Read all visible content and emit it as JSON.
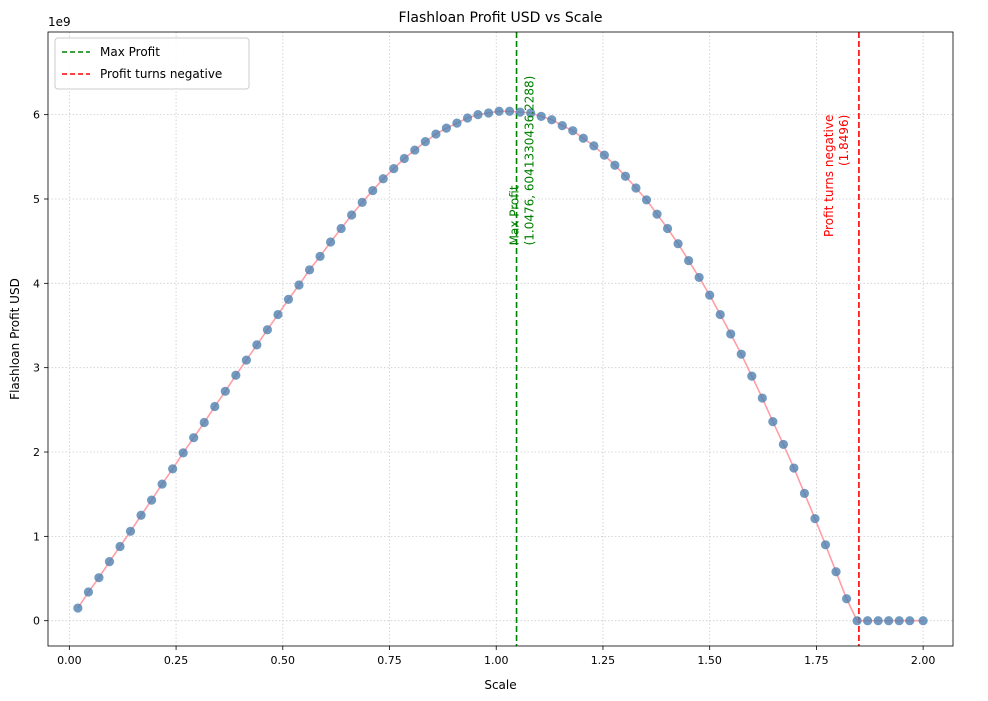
{
  "chart_data": {
    "type": "scatter",
    "title": "Flashloan Profit USD vs Scale",
    "xlabel": "Scale",
    "ylabel": "Flashloan Profit USD",
    "y_offset_label": "1e9",
    "xlim": [
      -0.05,
      2.07
    ],
    "ylim": [
      -0.3,
      6.98
    ],
    "xticks": [
      0.0,
      0.25,
      0.5,
      0.75,
      1.0,
      1.25,
      1.5,
      1.75,
      2.0
    ],
    "xtick_labels": [
      "0.00",
      "0.25",
      "0.50",
      "0.75",
      "1.00",
      "1.25",
      "1.50",
      "1.75",
      "2.00"
    ],
    "yticks": [
      0,
      1,
      2,
      3,
      4,
      5,
      6
    ],
    "ytick_labels": [
      "0",
      "1",
      "2",
      "3",
      "4",
      "5",
      "6"
    ],
    "grid": true,
    "legend_position": "top-left",
    "series": [
      {
        "x": [
          0.02,
          0.0447,
          0.0693,
          0.094,
          0.1187,
          0.1433,
          0.168,
          0.1927,
          0.2173,
          0.242,
          0.2667,
          0.2913,
          0.316,
          0.3407,
          0.3653,
          0.39,
          0.4147,
          0.4393,
          0.464,
          0.4887,
          0.5133,
          0.538,
          0.5627,
          0.5873,
          0.612,
          0.6367,
          0.6613,
          0.686,
          0.7107,
          0.7353,
          0.76,
          0.7847,
          0.8093,
          0.834,
          0.8587,
          0.8833,
          0.908,
          0.9327,
          0.9573,
          0.982,
          1.0067,
          1.0313,
          1.056,
          1.0807,
          1.1053,
          1.13,
          1.1547,
          1.1793,
          1.204,
          1.2287,
          1.2533,
          1.278,
          1.3027,
          1.3273,
          1.352,
          1.3767,
          1.4013,
          1.426,
          1.4507,
          1.4753,
          1.5,
          1.5247,
          1.5493,
          1.574,
          1.5987,
          1.6233,
          1.648,
          1.6727,
          1.6973,
          1.722,
          1.7467,
          1.7713,
          1.796,
          1.8207,
          1.8453,
          1.87,
          1.8947,
          1.9193,
          1.944,
          1.9687,
          2.0
        ],
        "values": [
          0.15,
          0.34,
          0.51,
          0.7,
          0.88,
          1.06,
          1.25,
          1.43,
          1.62,
          1.8,
          1.99,
          2.17,
          2.35,
          2.54,
          2.72,
          2.91,
          3.09,
          3.27,
          3.45,
          3.63,
          3.81,
          3.98,
          4.16,
          4.32,
          4.49,
          4.65,
          4.81,
          4.96,
          5.1,
          5.24,
          5.36,
          5.48,
          5.58,
          5.68,
          5.77,
          5.84,
          5.9,
          5.96,
          6.0,
          6.02,
          6.04,
          6.04,
          6.03,
          6.02,
          5.98,
          5.94,
          5.87,
          5.81,
          5.72,
          5.63,
          5.52,
          5.4,
          5.27,
          5.13,
          4.99,
          4.82,
          4.65,
          4.47,
          4.27,
          4.07,
          3.86,
          3.63,
          3.4,
          3.16,
          2.9,
          2.64,
          2.36,
          2.09,
          1.81,
          1.51,
          1.21,
          0.9,
          0.58,
          0.26,
          0.0,
          0.0,
          0.0,
          0.0,
          0.0,
          0.0,
          0.0
        ]
      }
    ],
    "reference_lines": [
      {
        "name": "Max Profit",
        "x": 1.0476,
        "color": "#008000",
        "annotation_line1": "Max Profit",
        "annotation_line2": "(1.0476, 6041330436.2288)"
      },
      {
        "name": "Profit turns negative",
        "x": 1.8496,
        "color": "#ff0000",
        "annotation_line1": "Profit turns negative",
        "annotation_line2": "(1.8496)"
      }
    ],
    "colors": {
      "points": "#4f81b0",
      "line": "#ff9ea6",
      "grid": "#cccccc",
      "axis": "#000000"
    }
  }
}
